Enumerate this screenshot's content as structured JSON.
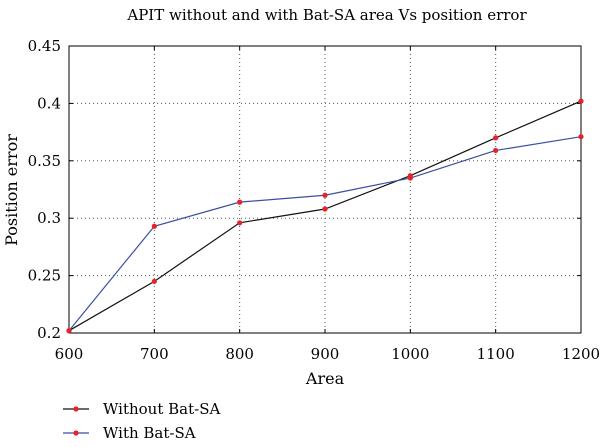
{
  "chart_data": {
    "type": "line",
    "title": "APIT without and with Bat-SA area Vs position error",
    "xlabel": "Area",
    "ylabel": "Position error",
    "x": [
      600,
      700,
      800,
      900,
      1000,
      1100,
      1200
    ],
    "xlim": [
      600,
      1200
    ],
    "ylim": [
      0.2,
      0.45
    ],
    "xticks": [
      "600",
      "700",
      "800",
      "900",
      "1000",
      "1100",
      "1200"
    ],
    "yticks": [
      "0.2",
      "0.25",
      "0.3",
      "0.35",
      "0.4",
      "0.45"
    ],
    "grid": true,
    "legend_position": "bottom-left, below plot",
    "series": [
      {
        "name": "Without Bat-SA",
        "line_color": "#111111",
        "marker_color": "#e8212b",
        "values": [
          0.202,
          0.245,
          0.296,
          0.308,
          0.337,
          0.37,
          0.402
        ]
      },
      {
        "name": "With Bat-SA",
        "line_color": "#3b4fa3",
        "marker_color": "#e8212b",
        "values": [
          0.202,
          0.293,
          0.314,
          0.32,
          0.335,
          0.359,
          0.371
        ]
      }
    ]
  }
}
